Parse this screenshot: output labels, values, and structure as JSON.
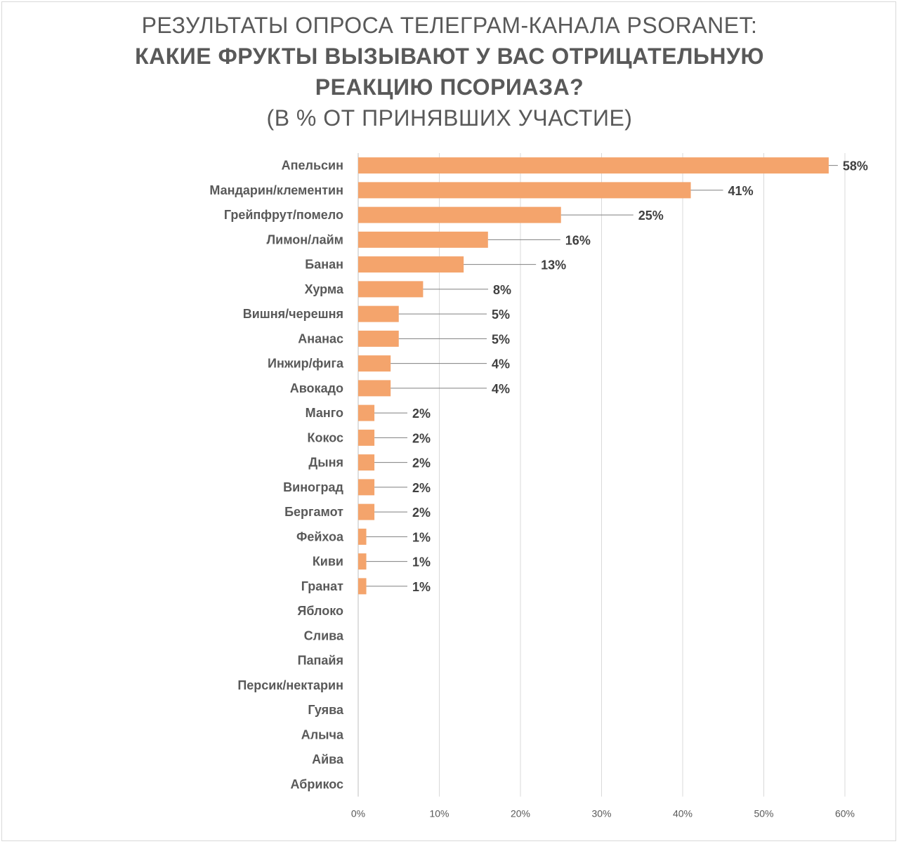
{
  "title": {
    "line1": "РЕЗУЛЬТАТЫ ОПРОСА ТЕЛЕГРАМ-КАНАЛА PSORANET:",
    "line2": "КАКИЕ ФРУКТЫ ВЫЗЫВАЮТ У ВАС ОТРИЦАТЕЛЬНУЮ",
    "line3": "РЕАКЦИЮ ПСОРИАЗА?",
    "line4": "(В % ОТ ПРИНЯВШИХ УЧАСТИЕ)"
  },
  "chart_data": {
    "type": "bar",
    "orientation": "horizontal",
    "title": "РЕЗУЛЬТАТЫ ОПРОСА ТЕЛЕГРАМ-КАНАЛА PSORANET: КАКИЕ ФРУКТЫ ВЫЗЫВАЮТ У ВАС ОТРИЦАТЕЛЬНУЮ РЕАКЦИЮ ПСОРИАЗА? (В % ОТ ПРИНЯВШИХ УЧАСТИЕ)",
    "categories": [
      "Апельсин",
      "Мандарин/клементин",
      "Грейпфрут/помело",
      "Лимон/лайм",
      "Банан",
      "Хурма",
      "Вишня/черешня",
      "Ананас",
      "Инжир/фига",
      "Авокадо",
      "Манго",
      "Кокос",
      "Дыня",
      "Виноград",
      "Бергамот",
      "Фейхоа",
      "Киви",
      "Гранат",
      "Яблоко",
      "Слива",
      "Папайя",
      "Персик/нектарин",
      "Гуява",
      "Алыча",
      "Айва",
      "Абрикос"
    ],
    "values": [
      58,
      41,
      25,
      16,
      13,
      8,
      5,
      5,
      4,
      4,
      2,
      2,
      2,
      2,
      2,
      1,
      1,
      1,
      0,
      0,
      0,
      0,
      0,
      0,
      0,
      0
    ],
    "data_labels": [
      "58%",
      "41%",
      "25%",
      "16%",
      "13%",
      "8%",
      "5%",
      "5%",
      "4%",
      "4%",
      "2%",
      "2%",
      "2%",
      "2%",
      "2%",
      "1%",
      "1%",
      "1%",
      "",
      "",
      "",
      "",
      "",
      "",
      "",
      ""
    ],
    "xlim": [
      0,
      60
    ],
    "xticks": [
      0,
      10,
      20,
      30,
      40,
      50,
      60
    ],
    "xtick_labels": [
      "0%",
      "10%",
      "20%",
      "30%",
      "40%",
      "50%",
      "60%"
    ],
    "grid": "vertical",
    "legend": "none",
    "bar_color": "#F4A46C",
    "grid_color": "#d9d9d9",
    "leader_color": "#7f7f7f"
  }
}
